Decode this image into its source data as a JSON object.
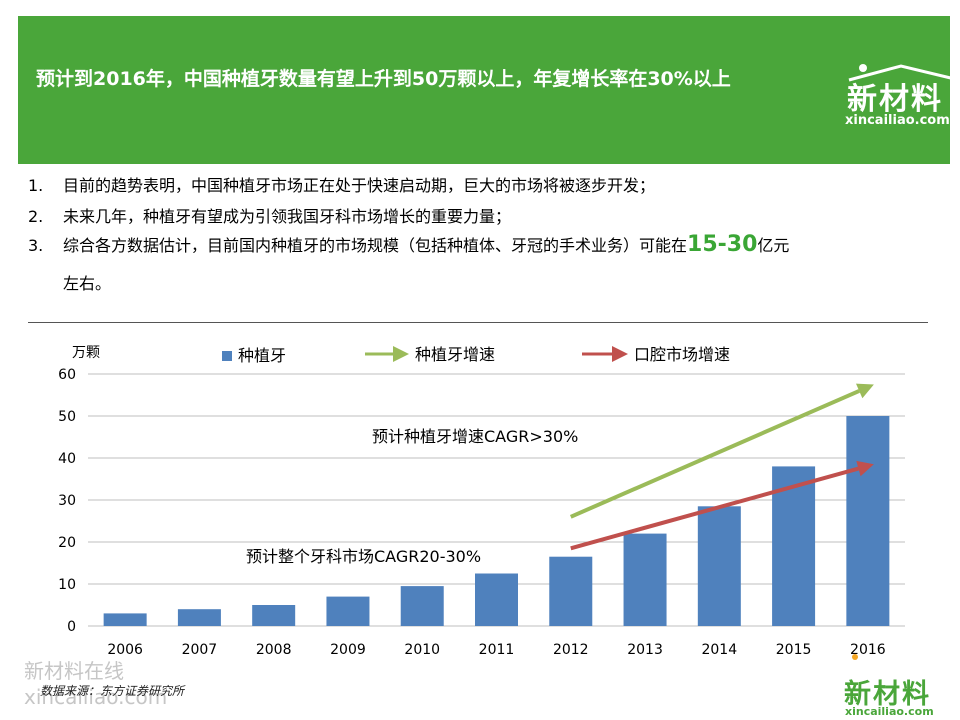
{
  "banner": {
    "title": "预计到2016年，中国种植牙数量有望上升到50万颗以上，年复增长率在30%以上",
    "logo_main": "新材料",
    "logo_sub": "xincailiao.com",
    "bg_color": "#4aa63a"
  },
  "bullets": [
    {
      "num": "1.",
      "text": "目前的趋势表明，中国种植牙市场正在处于快速启动期，巨大的市场将被逐步开发；"
    },
    {
      "num": "2.",
      "text": "未来几年，种植牙有望成为引领我国牙科市场增长的重要力量；"
    },
    {
      "num": "3.",
      "text_before": "综合各方数据估计，目前国内种植牙的市场规模（包括种植体、牙冠的手术业务）可能在",
      "highlight": "15-30",
      "text_after": "亿元",
      "text_cont": "左右。"
    }
  ],
  "chart_data": {
    "type": "bar",
    "categories": [
      "2006",
      "2007",
      "2008",
      "2009",
      "2010",
      "2011",
      "2012",
      "2013",
      "2014",
      "2015",
      "2016"
    ],
    "series": [
      {
        "name": "种植牙",
        "values": [
          3,
          4,
          5,
          7,
          9.5,
          12.5,
          16.5,
          22,
          28.5,
          38,
          50
        ],
        "color": "#4f81bd"
      }
    ],
    "y_unit_label": "万颗",
    "ylim": [
      0,
      60
    ],
    "yticks": [
      0,
      10,
      20,
      30,
      40,
      50,
      60
    ],
    "grid": true,
    "legend": [
      {
        "label": "种植牙",
        "type": "bar",
        "color": "#4f81bd"
      },
      {
        "label": "种植牙增速",
        "type": "arrow",
        "color": "#9bbb59"
      },
      {
        "label": "口腔市场增速",
        "type": "arrow",
        "color": "#c0504d"
      }
    ],
    "annotations": [
      {
        "text": "预计种植牙增速CAGR>30%"
      },
      {
        "text": "预计整个牙科市场CAGR20-30%"
      }
    ],
    "trend_arrows": [
      {
        "name": "种植牙增速",
        "color": "#9bbb59",
        "from": [
          2012,
          26
        ],
        "to": [
          2016,
          57.5
        ]
      },
      {
        "name": "口腔市场增速",
        "color": "#c0504d",
        "from": [
          2012,
          18.5
        ],
        "to": [
          2016,
          38.5
        ]
      }
    ]
  },
  "footer": {
    "watermark_line1": "新材料在线",
    "watermark_line2": "xincailiao.com",
    "source": "数据来源：东方证券研究所",
    "logo_main": "新材料",
    "logo_sub": "xincailiao.com"
  }
}
